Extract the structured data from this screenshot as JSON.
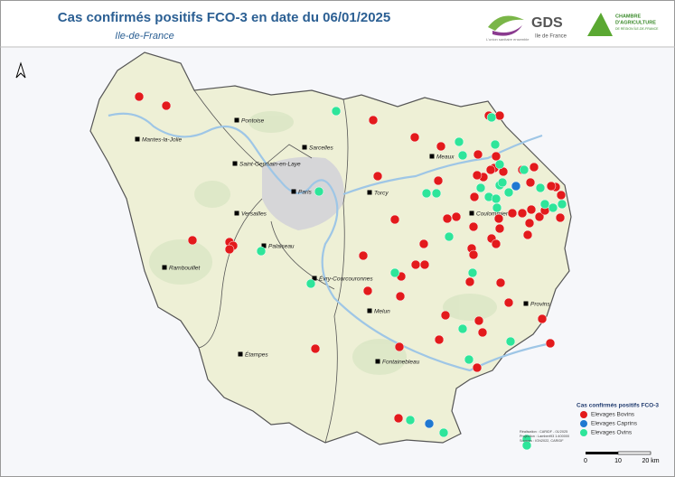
{
  "header": {
    "title": "Cas confirmés positifs FCO-3 en date du 06/01/2025",
    "subtitle": "Ile-de-France"
  },
  "logos": {
    "gds": "GDS",
    "gds_sub": "Ile de France",
    "gds_tagline": "L'union sanitaire ensemble",
    "chambre": [
      "CHAMBRE",
      "D'AGRICULTURE",
      "DE RÉGION ÎLE-DE-FRANCE"
    ]
  },
  "cities": [
    "Pontoise",
    "Mantes-la-Jolie",
    "Sarcelles",
    "Saint-Germain-en-Laye",
    "Meaux",
    "Torcy",
    "Paris",
    "Versailles",
    "Coulommiers",
    "Palaiseau",
    "Rambouillet",
    "Évry-Courcouronnes",
    "Melun",
    "Provins",
    "Étampes",
    "Fontainebleau"
  ],
  "legend": {
    "title": "Cas confirmés positifs FCO-3",
    "items": [
      {
        "name": "Elevages Bovins",
        "color": "#e31a1c"
      },
      {
        "name": "Elevages Caprins",
        "color": "#1f78d1"
      },
      {
        "name": "Elevages Ovins",
        "color": "#2ee59a"
      }
    ]
  },
  "credits": [
    "Réalisation : CARIDF - 01/2025",
    "Projection : Lambert93 1:400000",
    "Sources : IGN2022, CARIDF"
  ],
  "scale": [
    "0",
    "10",
    "20 km"
  ]
}
